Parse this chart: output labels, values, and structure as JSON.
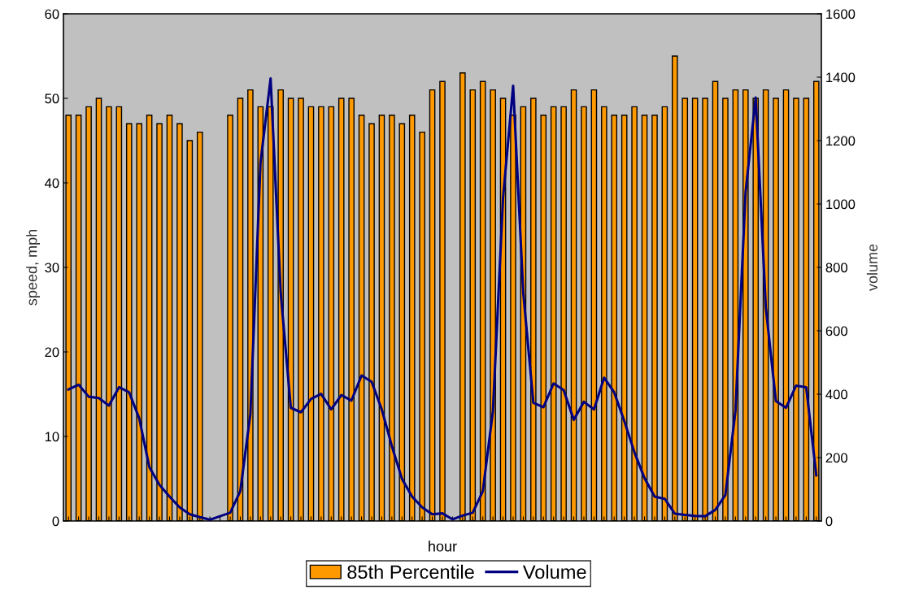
{
  "chart_data": {
    "type": "bar",
    "xlabel": "hour",
    "ylabel": "speed, mph",
    "y2label": "volume",
    "categories": [
      null,
      null,
      null,
      null,
      null,
      null,
      null,
      null,
      null,
      null,
      null,
      null,
      null,
      null,
      null,
      null,
      null,
      null,
      null,
      null,
      null,
      null,
      null,
      null,
      null,
      null,
      null,
      null,
      null,
      null,
      null,
      null,
      null,
      null,
      null,
      null,
      null,
      null,
      null,
      null,
      null,
      null,
      null,
      null,
      null,
      null,
      null,
      null,
      null,
      null,
      null,
      null,
      null,
      null,
      null,
      null,
      null,
      null,
      null,
      null,
      null,
      null,
      null,
      null,
      null,
      null,
      null,
      null,
      null,
      null,
      null,
      null,
      null,
      null,
      null
    ],
    "series": [
      {
        "name": "85th Percentile",
        "color": "#ff9900",
        "values": [
          48,
          48,
          49,
          50,
          49,
          49,
          47,
          47,
          48,
          47,
          48,
          47,
          45,
          46,
          null,
          null,
          48,
          50,
          51,
          49,
          49,
          51,
          50,
          50,
          49,
          49,
          49,
          50,
          50,
          48,
          47,
          48,
          48,
          47,
          48,
          46,
          51,
          52,
          null,
          53,
          51,
          52,
          51,
          50,
          48,
          49,
          50,
          48,
          49,
          49,
          51,
          49,
          51,
          49,
          48,
          48,
          49,
          48,
          48,
          49,
          55,
          50,
          50,
          50,
          52,
          50,
          51,
          51,
          50,
          51,
          50,
          51,
          50,
          50,
          52
        ]
      },
      {
        "name": "Volume",
        "type": "line",
        "axis": "y2",
        "color": "#000080",
        "values": [
          415,
          430,
          392,
          388,
          364,
          422,
          406,
          324,
          170,
          114,
          77,
          43,
          21,
          12,
          4,
          15,
          26,
          94,
          338,
          1130,
          1396,
          720,
          357,
          343,
          385,
          401,
          352,
          397,
          380,
          459,
          439,
          352,
          236,
          133,
          77,
          43,
          21,
          24,
          5,
          17,
          26,
          94,
          347,
          1019,
          1373,
          720,
          373,
          359,
          434,
          413,
          319,
          376,
          352,
          452,
          406,
          315,
          217,
          135,
          77,
          70,
          23,
          19,
          16,
          15,
          35,
          82,
          347,
          1037,
          1336,
          674,
          378,
          357,
          427,
          422,
          144
        ]
      }
    ],
    "ylim": [
      0,
      60
    ],
    "yticks": [
      0,
      10,
      20,
      30,
      40,
      50,
      60
    ],
    "y2lim": [
      0,
      1600
    ],
    "y2ticks": [
      0,
      200,
      400,
      600,
      800,
      1000,
      1200,
      1400,
      1600
    ],
    "legend": "bottom",
    "marker": "none",
    "line_style": "solid"
  }
}
